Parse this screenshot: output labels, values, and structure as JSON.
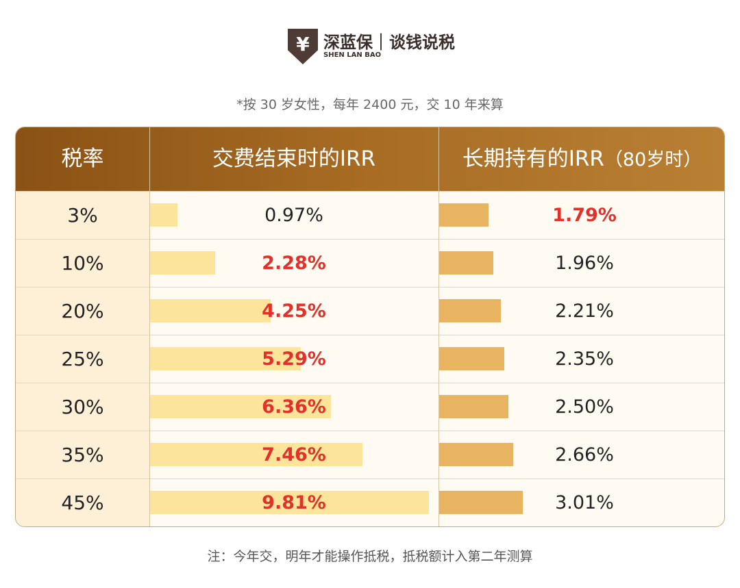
{
  "logo": {
    "mark": "¥",
    "name": "深蓝保｜谈钱说税",
    "sub": "SHEN LAN BAO"
  },
  "note": "*按 30 岁女性，每年 2400 元，交 10 年来算",
  "footnote": "注：今年交，明年才能操作抵税，抵税额计入第二年测算",
  "colors": {
    "header": "#8a5214",
    "bar_payment_end": "#fce49a",
    "bar_long_term": "#e8b462",
    "highlight": "#e0322a"
  },
  "chart_data": {
    "type": "table",
    "columns": [
      "税率",
      "交费结束时的IRR",
      "长期持有的IRR"
    ],
    "column3_suffix": "（80岁时）",
    "categories": [
      "3%",
      "10%",
      "20%",
      "25%",
      "30%",
      "35%",
      "45%"
    ],
    "series": [
      {
        "name": "交费结束时的IRR",
        "values": [
          0.97,
          2.28,
          4.25,
          5.29,
          6.36,
          7.46,
          9.81
        ],
        "labels": [
          "0.97%",
          "2.28%",
          "4.25%",
          "5.29%",
          "6.36%",
          "7.46%",
          "9.81%"
        ],
        "highlighted": [
          false,
          true,
          true,
          true,
          true,
          true,
          true
        ]
      },
      {
        "name": "长期持有的IRR（80岁时）",
        "values": [
          1.79,
          1.96,
          2.21,
          2.35,
          2.5,
          2.66,
          3.01
        ],
        "labels": [
          "1.79%",
          "1.96%",
          "2.21%",
          "2.35%",
          "2.50%",
          "2.66%",
          "3.01%"
        ],
        "highlighted": [
          true,
          false,
          false,
          false,
          false,
          false,
          false
        ]
      }
    ]
  }
}
